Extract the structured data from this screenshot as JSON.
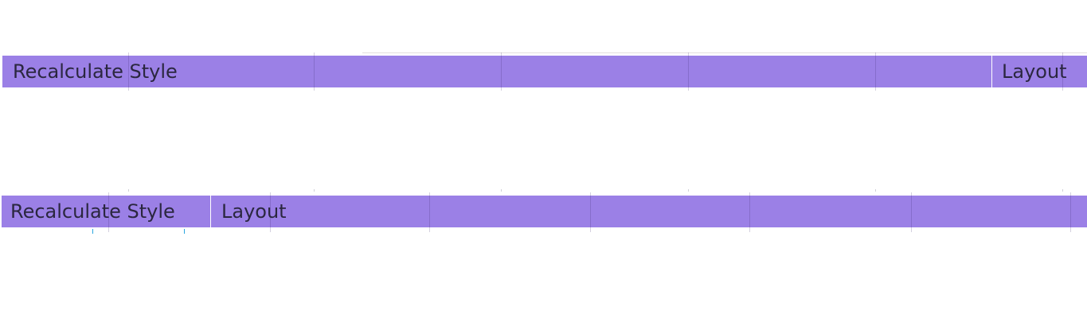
{
  "timeline": {
    "top_track": {
      "events": [
        {
          "label": "Recalculate Style"
        },
        {
          "label": "Layout"
        }
      ]
    },
    "bottom_track": {
      "events": [
        {
          "label": "Recalculate Style"
        },
        {
          "label": "Layout"
        }
      ]
    }
  },
  "colors": {
    "rendering_event": "#9b80e6",
    "event_text": "#2b2740",
    "marker": "#2aa6e0"
  }
}
